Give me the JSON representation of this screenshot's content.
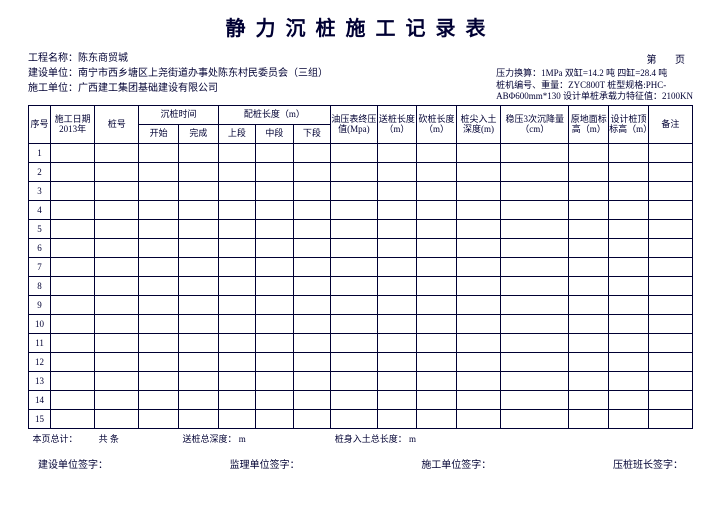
{
  "title": "静力沉桩施工记录表",
  "meta": {
    "project_label": "工程名称：",
    "project": "陈东商贸城",
    "owner_label": "建设单位：",
    "owner": "南宁市西乡塘区上尧街道办事处陈东村民委员会（三组）",
    "contractor_label": "施工单位：",
    "contractor": "广西建工集团基础建设有限公司"
  },
  "page_label": "第  页",
  "right_meta": {
    "l1": "压力换算：1MPa 双缸=14.2 吨 四缸=28.4 吨",
    "l2": "桩机编号、重量：ZYC800T     桩型规格:PHC-",
    "l3": "ABΦ600mm*130  设计单桩承载力特征值：2100KN"
  },
  "headers": {
    "seq": "序号",
    "date": "施工日期2013年",
    "pile": "桩号",
    "time_group": "沉桩时间",
    "time_start": "开始",
    "time_end": "完成",
    "seg_group": "配桩长度（m）",
    "seg_top": "上段",
    "seg_mid": "中段",
    "seg_bot": "下段",
    "press": "油压表终压值(Mpa)",
    "send": "送桩长度（m）",
    "cut": "砍桩长度（m）",
    "tip": "桩尖入土深度(m)",
    "stable": "稳压3次沉降量（cm）",
    "ground": "原地面标高（m）",
    "design": "设计桩顶标高（m）",
    "note": "备注"
  },
  "rows": [
    1,
    2,
    3,
    4,
    5,
    6,
    7,
    8,
    9,
    10,
    11,
    12,
    13,
    14,
    15
  ],
  "footer": {
    "total_label": "本页总计：",
    "count": "共    条",
    "send_depth": "送桩总深度：      m",
    "body_len": "桩身入土总长度：      m"
  },
  "signs": {
    "owner": "建设单位签字：",
    "supervisor": "监理单位签字：",
    "contractor": "施工单位签字：",
    "team": "压桩班长签字："
  }
}
